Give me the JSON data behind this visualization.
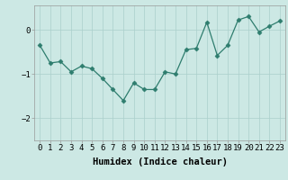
{
  "x": [
    0,
    1,
    2,
    3,
    4,
    5,
    6,
    7,
    8,
    9,
    10,
    11,
    12,
    13,
    14,
    15,
    16,
    17,
    18,
    19,
    20,
    21,
    22,
    23
  ],
  "y": [
    -0.35,
    -0.75,
    -0.72,
    -0.95,
    -0.82,
    -0.88,
    -1.1,
    -1.35,
    -1.6,
    -1.2,
    -1.35,
    -1.35,
    -0.95,
    -1.0,
    -0.45,
    -0.42,
    0.17,
    -0.58,
    -0.35,
    0.22,
    0.3,
    -0.05,
    0.08,
    0.2
  ],
  "line_color": "#2e7d6e",
  "marker": "D",
  "marker_size": 2.5,
  "bg_color": "#cce8e4",
  "grid_color": "#aacfcb",
  "xlabel": "Humidex (Indice chaleur)",
  "xlabel_fontsize": 7.5,
  "tick_fontsize": 6.5,
  "ylim": [
    -2.5,
    0.55
  ],
  "yticks": [
    -2,
    -1,
    0
  ],
  "xlim": [
    -0.5,
    23.5
  ]
}
